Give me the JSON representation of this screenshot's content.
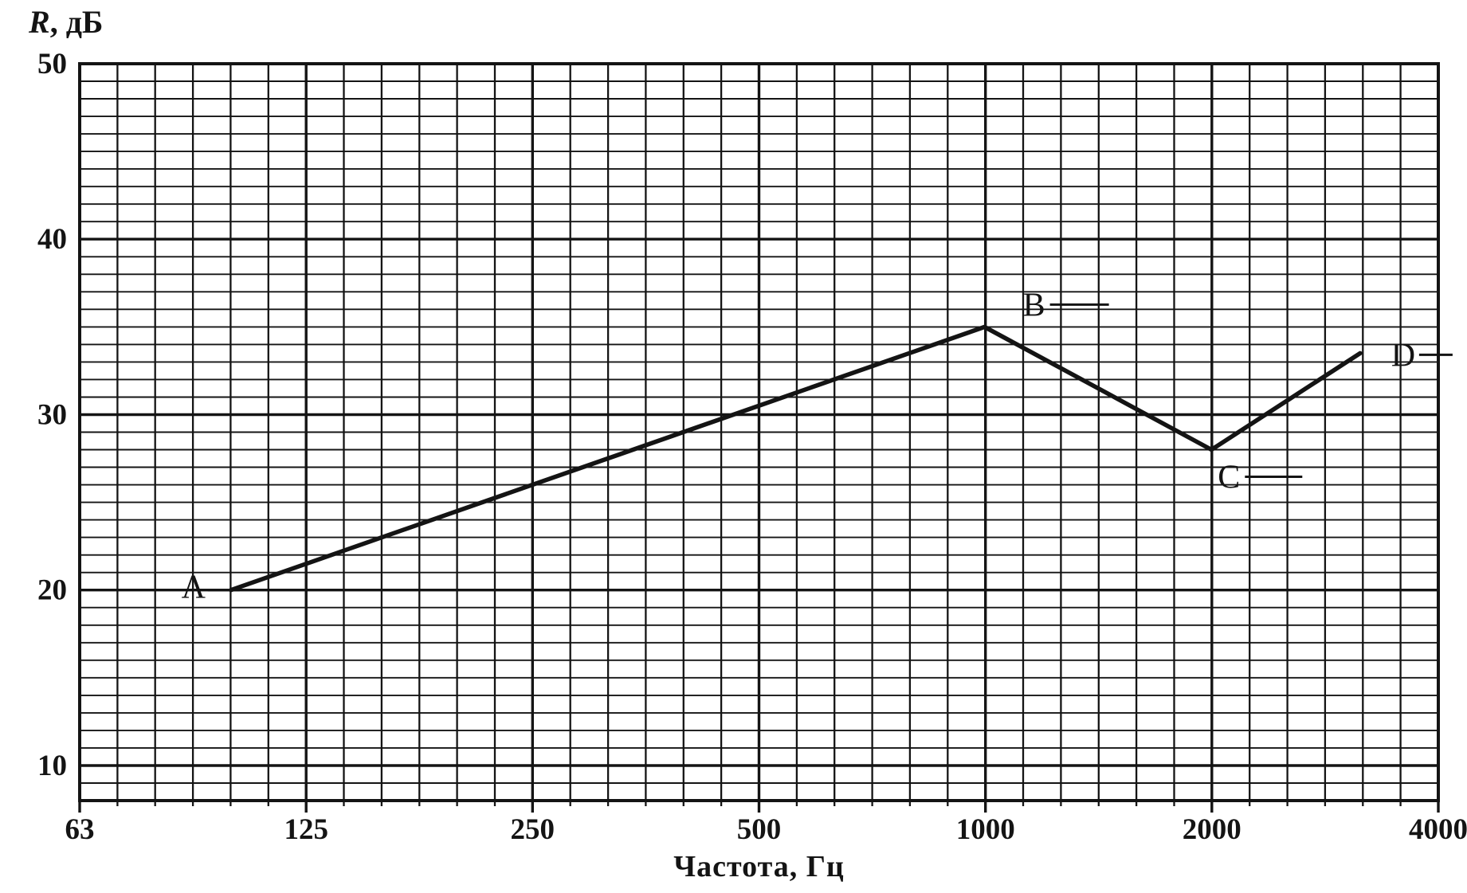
{
  "chart_data": {
    "type": "line",
    "title": "",
    "ylabel_symbol": "R",
    "ylabel_unit": ", дБ",
    "xlabel": "Частота, Гц",
    "x_scale": "log2",
    "x_domain": [
      63,
      4000
    ],
    "y_domain": [
      8,
      50
    ],
    "x_ticks": [
      63,
      125,
      250,
      500,
      1000,
      2000,
      4000
    ],
    "x_tick_labels": [
      "63",
      "125",
      "250",
      "500",
      "1000",
      "2000",
      "4000"
    ],
    "y_ticks": [
      10,
      20,
      30,
      40,
      50
    ],
    "y_tick_labels": [
      "10",
      "20",
      "30",
      "40",
      "50"
    ],
    "y_minor_step_db": 1,
    "x_minor_divisions_per_octave": 6,
    "grid": "fine grid: horizontal lines every 1 dB, vertical lines every 1/6 octave, bold lines at labeled ticks",
    "legend": "none",
    "series": [
      {
        "name": "R",
        "points": [
          {
            "label": "A",
            "freq_hz": 100,
            "r_db": 20
          },
          {
            "label": "B",
            "freq_hz": 1000,
            "r_db": 35
          },
          {
            "label": "C",
            "freq_hz": 2000,
            "r_db": 28
          },
          {
            "label": "D",
            "freq_hz": 3150,
            "r_db": 33.5
          }
        ]
      }
    ],
    "point_labels": [
      "A",
      "B",
      "C",
      "D"
    ],
    "colors": {
      "ink": "#141414",
      "background": "#ffffff"
    }
  },
  "annotations": {
    "A": {
      "dx": -47,
      "dy": 10,
      "lead_dx": 18,
      "lead_dy": -10,
      "lead_len": 40
    },
    "B": {
      "dx": 62,
      "dy": -14,
      "lead_dx": 20,
      "lead_dy": -14,
      "lead_len": 74
    },
    "C": {
      "dx": 22,
      "dy": 48,
      "lead_dx": 20,
      "lead_dy": -14,
      "lead_len": 72
    },
    "D": {
      "dx": 54,
      "dy": 16,
      "lead_dx": 20,
      "lead_dy": -14,
      "lead_len": 42
    }
  }
}
